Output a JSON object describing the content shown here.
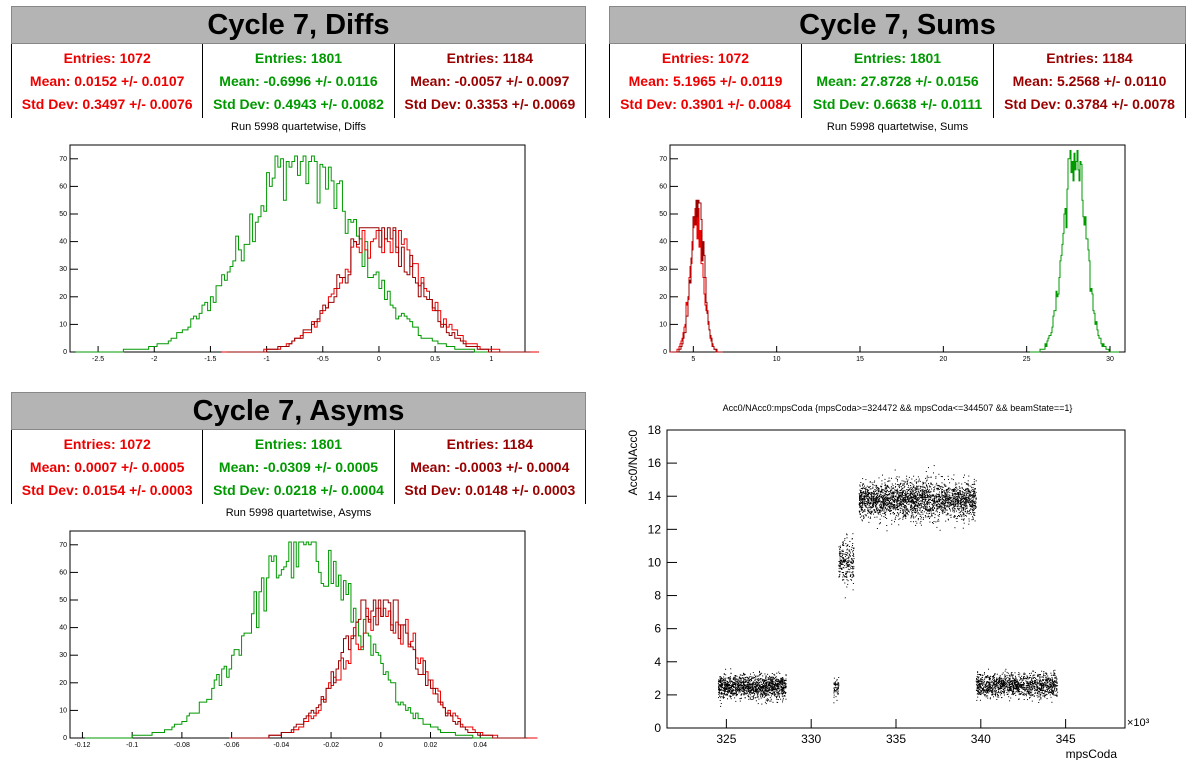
{
  "colors": {
    "red": "#ee0000",
    "green": "#009900",
    "darkred": "#990000"
  },
  "panels": {
    "diffs": {
      "title": "Cycle 7, Diffs",
      "stats": [
        {
          "entries": "Entries: 1072",
          "mean": "Mean: 0.0152 +/- 0.0107",
          "std": "Std Dev: 0.3497 +/- 0.0076"
        },
        {
          "entries": "Entries: 1801",
          "mean": "Mean: -0.6996 +/- 0.0116",
          "std": "Std Dev: 0.4943 +/- 0.0082"
        },
        {
          "entries": "Entries: 1184",
          "mean": "Mean: -0.0057 +/- 0.0097",
          "std": "Std Dev: 0.3353 +/- 0.0069"
        }
      ],
      "subtitle": "Run 5998 quartetwise, Diffs"
    },
    "sums": {
      "title": "Cycle 7, Sums",
      "stats": [
        {
          "entries": "Entries: 1072",
          "mean": "Mean: 5.1965 +/- 0.0119",
          "std": "Std Dev: 0.3901 +/- 0.0084"
        },
        {
          "entries": "Entries: 1801",
          "mean": "Mean: 27.8728 +/- 0.0156",
          "std": "Std Dev: 0.6638 +/- 0.0111"
        },
        {
          "entries": "Entries: 1184",
          "mean": "Mean: 5.2568 +/- 0.0110",
          "std": "Std Dev: 0.3784 +/- 0.0078"
        }
      ],
      "subtitle": "Run 5998 quartetwise, Sums"
    },
    "asyms": {
      "title": "Cycle 7, Asyms",
      "stats": [
        {
          "entries": "Entries: 1072",
          "mean": "Mean: 0.0007 +/- 0.0005",
          "std": "Std Dev: 0.0154 +/- 0.0003"
        },
        {
          "entries": "Entries: 1801",
          "mean": "Mean: -0.0309 +/- 0.0005",
          "std": "Std Dev: 0.0218 +/- 0.0004"
        },
        {
          "entries": "Entries: 1184",
          "mean": "Mean: -0.0003 +/- 0.0004",
          "std": "Std Dev: 0.0148 +/- 0.0003"
        }
      ],
      "subtitle": "Run 5998 quartetwise, Asyms"
    },
    "scatter": {
      "title": "Acc0/NAcc0:mpsCoda {mpsCoda>=324472 && mpsCoda<=344507 && beamState==1}"
    }
  },
  "chart_data": [
    {
      "type": "histogram",
      "name": "diffs",
      "xlim": [
        -2.75,
        1.3
      ],
      "ylim": [
        0,
        75
      ],
      "xticks": [
        -2.5,
        -2,
        -1.5,
        -1,
        -0.5,
        0,
        0.5,
        1
      ],
      "yticks": [
        0,
        10,
        20,
        30,
        40,
        50,
        60,
        70
      ],
      "series": [
        {
          "color": "green",
          "mean": -0.6996,
          "std": 0.4943,
          "peak": 71
        },
        {
          "color": "red",
          "mean": 0.0152,
          "std": 0.3497,
          "peak": 44
        },
        {
          "color": "darkred",
          "mean": -0.0057,
          "std": 0.3353,
          "peak": 45
        }
      ]
    },
    {
      "type": "histogram",
      "name": "sums",
      "xlim": [
        3.6,
        30.9
      ],
      "ylim": [
        0,
        75
      ],
      "xticks": [
        5,
        10,
        15,
        20,
        25,
        30
      ],
      "yticks": [
        0,
        10,
        20,
        30,
        40,
        50,
        60,
        70
      ],
      "series": [
        {
          "color": "green",
          "mean": 27.8728,
          "std": 0.6638,
          "peak": 73
        },
        {
          "color": "red",
          "mean": 5.1965,
          "std": 0.3901,
          "peak": 52
        },
        {
          "color": "darkred",
          "mean": 5.2568,
          "std": 0.3784,
          "peak": 55
        }
      ]
    },
    {
      "type": "histogram",
      "name": "asyms",
      "xlim": [
        -0.125,
        0.058
      ],
      "ylim": [
        0,
        75
      ],
      "xticks": [
        -0.12,
        -0.1,
        -0.08,
        -0.06,
        -0.04,
        -0.02,
        0,
        0.02,
        0.04
      ],
      "yticks": [
        0,
        10,
        20,
        30,
        40,
        50,
        60,
        70
      ],
      "series": [
        {
          "color": "green",
          "mean": -0.0309,
          "std": 0.0218,
          "peak": 71
        },
        {
          "color": "red",
          "mean": 0.0007,
          "std": 0.0154,
          "peak": 47
        },
        {
          "color": "darkred",
          "mean": -0.0003,
          "std": 0.0148,
          "peak": 50
        }
      ]
    },
    {
      "type": "scatter",
      "name": "acc0",
      "xlabel": "mpsCoda",
      "ylabel": "Acc0/NAcc0",
      "xexp": "×10³",
      "xlim": [
        321.5,
        348.5
      ],
      "ylim": [
        0,
        18
      ],
      "xticks": [
        325,
        330,
        335,
        340,
        345
      ],
      "yticks": [
        0,
        2,
        4,
        6,
        8,
        10,
        12,
        14,
        16,
        18
      ],
      "clusters": [
        {
          "x": [
            324.5,
            328.5
          ],
          "y": [
            2.5,
            0.35
          ],
          "n": 1400
        },
        {
          "x": [
            331.3,
            331.6
          ],
          "y": [
            2.4,
            0.35
          ],
          "n": 60
        },
        {
          "x": [
            331.6,
            332.5
          ],
          "y": [
            10,
            0.7
          ],
          "n": 250
        },
        {
          "x": [
            332.8,
            339.7
          ],
          "y": [
            13.8,
            0.55
          ],
          "n": 2600
        },
        {
          "x": [
            339.7,
            344.5
          ],
          "y": [
            2.6,
            0.35
          ],
          "n": 1400
        }
      ]
    }
  ]
}
